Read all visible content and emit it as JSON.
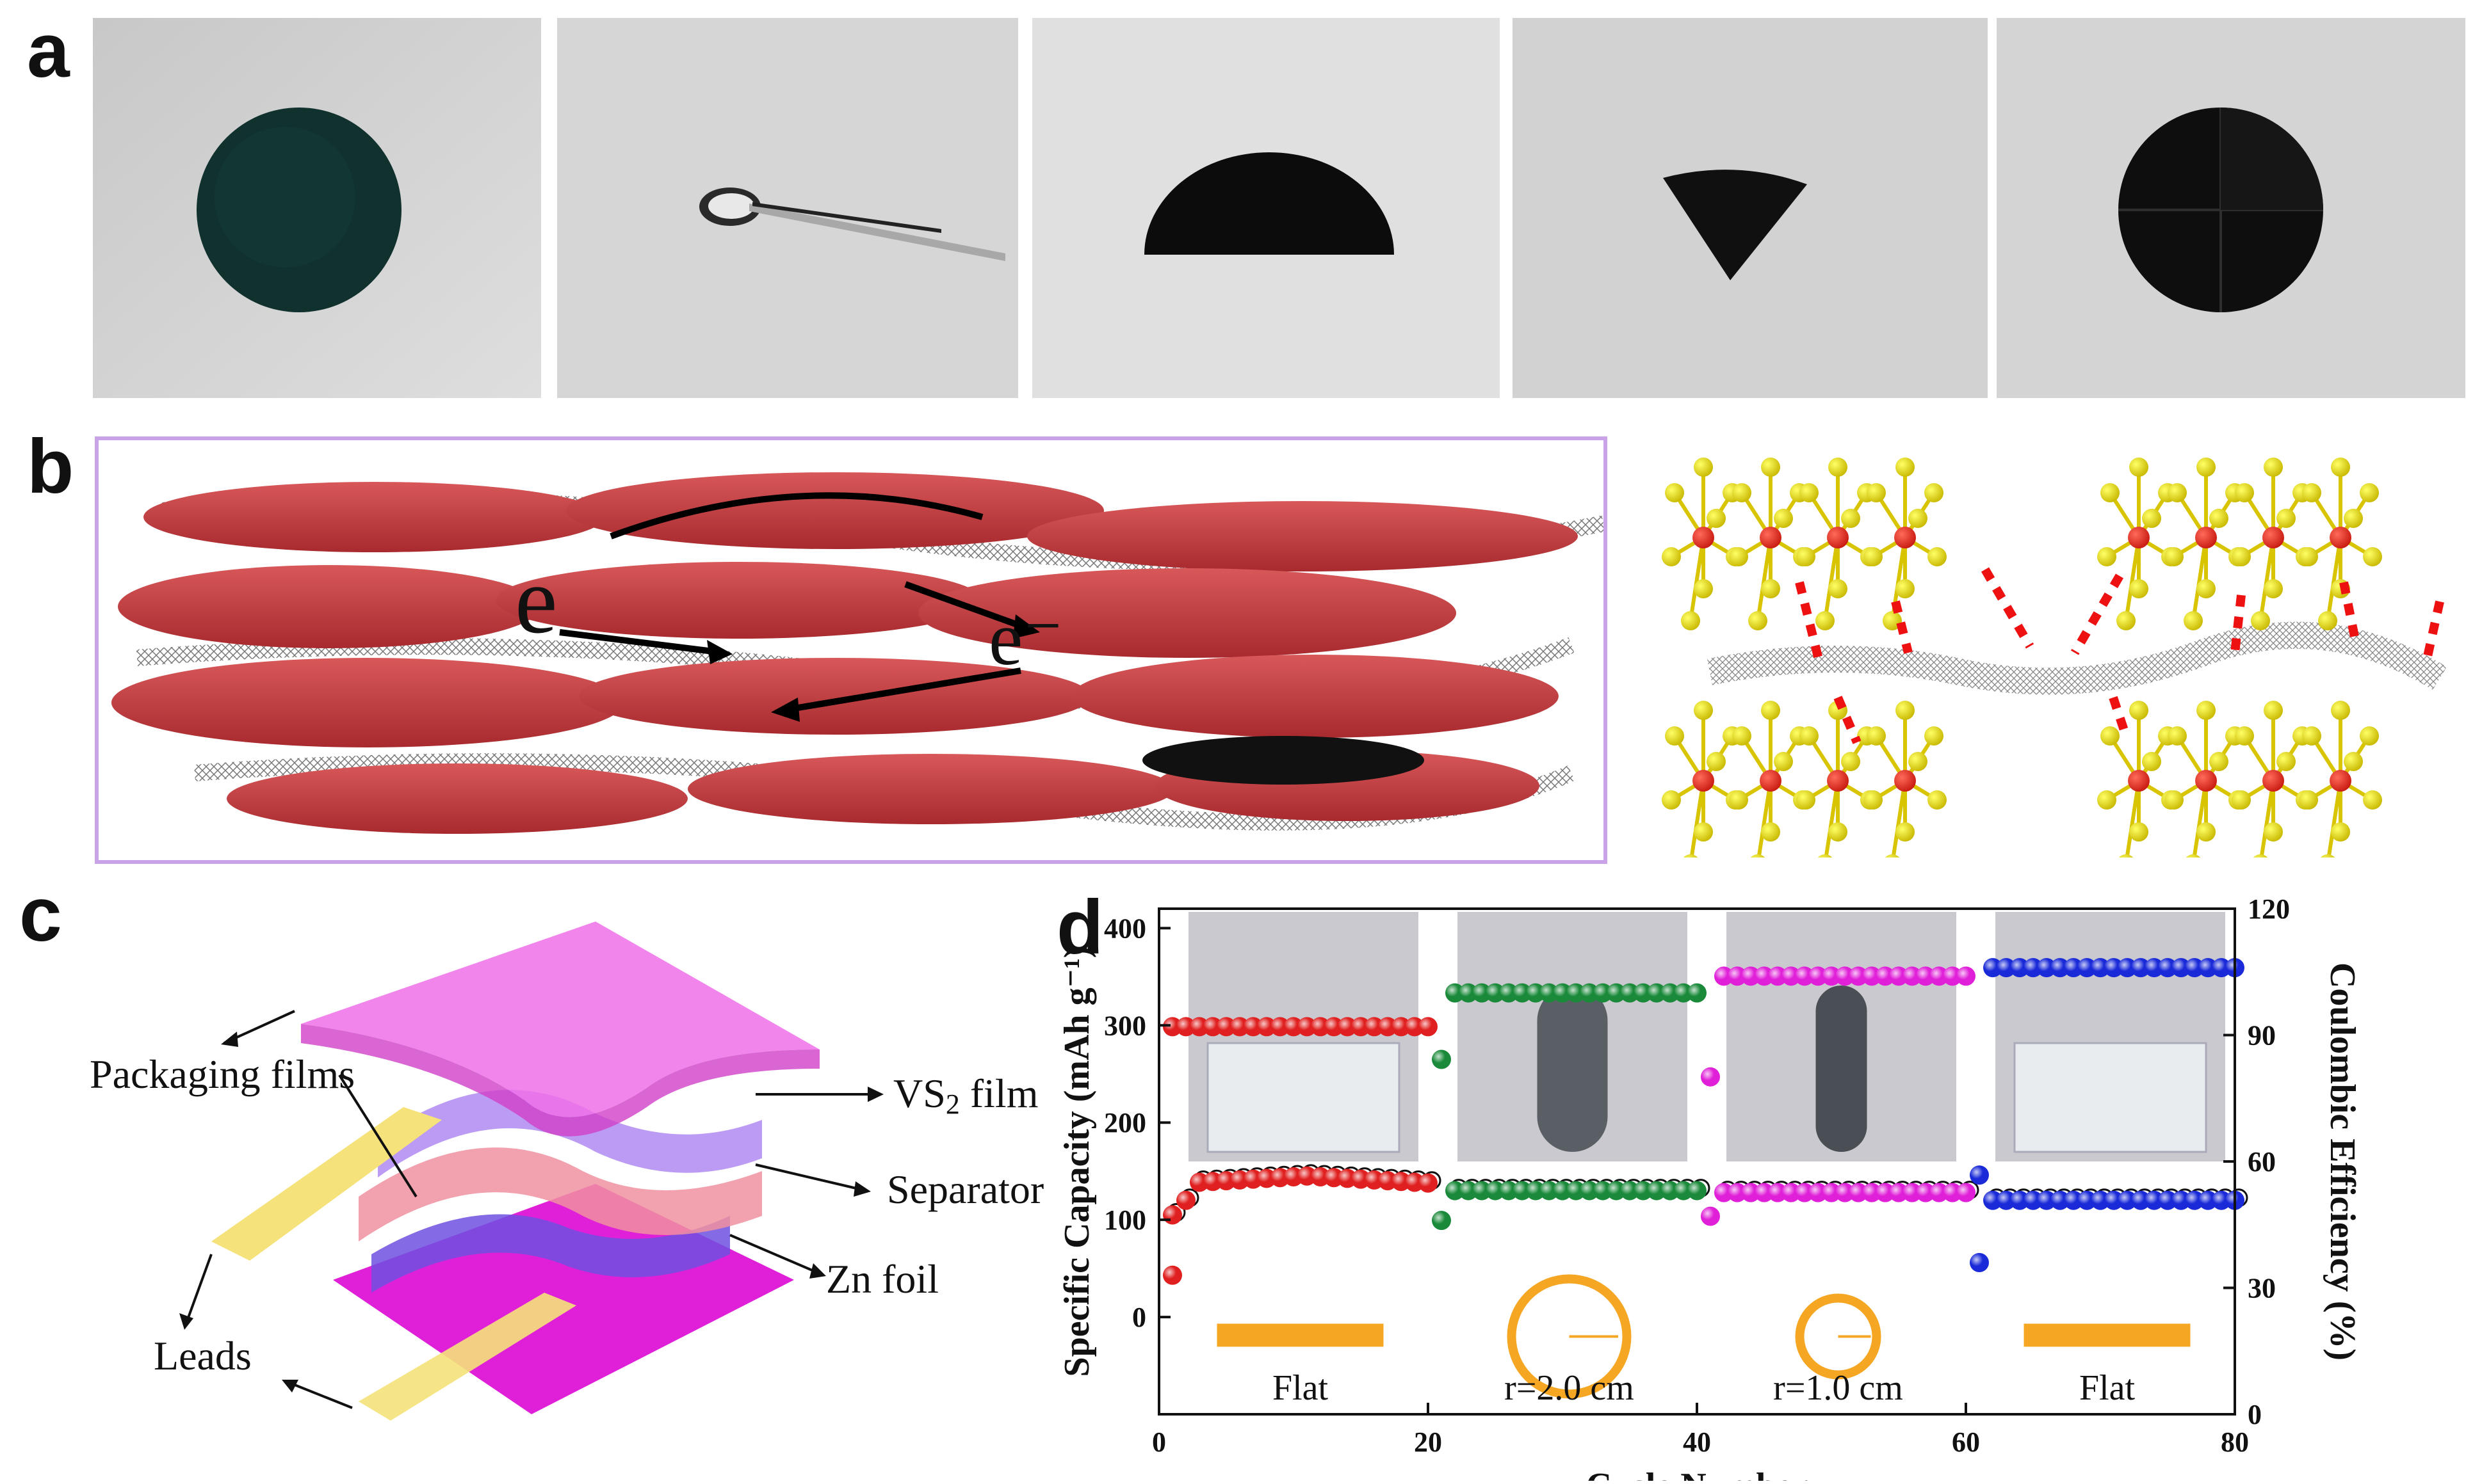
{
  "panels": {
    "a": "a",
    "b": "b",
    "c": "c",
    "d": "d"
  },
  "panel_b": {
    "electron_label_1": "e",
    "electron_label_2": "e⁻"
  },
  "panel_c": {
    "labels": {
      "packaging": "Packaging films",
      "vs2": "VS",
      "vs2_sub": "2",
      "vs2_suffix": " film",
      "separator": "Separator",
      "zn": "Zn foil",
      "leads": "Leads"
    }
  },
  "colors": {
    "capacity_segments": [
      "#e02020",
      "#1a8a3a",
      "#e020d8",
      "#1a2ad8"
    ],
    "bend_indicator": "#f5a623",
    "panel_b_border": "#c9a3e8",
    "sheet_red": "#c4393e"
  },
  "chart_data": {
    "type": "scatter",
    "xlabel": "Cycle Number",
    "ylabel": "Specific Capacity (mAh g⁻¹)",
    "y2label": "Coulombic Efficiency (%)",
    "xlim": [
      0,
      80
    ],
    "ylim": [
      -100,
      420
    ],
    "y2lim": [
      0,
      120
    ],
    "xticks": [
      0,
      20,
      40,
      60,
      80
    ],
    "yticks": [
      0,
      100,
      200,
      300,
      400
    ],
    "y2ticks": [
      0,
      30,
      60,
      90,
      120
    ],
    "segments": [
      {
        "label": "Flat",
        "x_range": [
          1,
          20
        ],
        "color": "#e02020",
        "capacity": 145,
        "efficiency_plateau": 92
      },
      {
        "label": "r=2.0 cm",
        "x_range": [
          21,
          40
        ],
        "color": "#1a8a3a",
        "capacity": 130,
        "efficiency_plateau": 100
      },
      {
        "label": "r=1.0 cm",
        "x_range": [
          41,
          60
        ],
        "color": "#e020d8",
        "capacity": 128,
        "efficiency_plateau": 104
      },
      {
        "label": "Flat",
        "x_range": [
          61,
          80
        ],
        "color": "#1a2ad8",
        "capacity": 120,
        "efficiency_plateau": 106
      }
    ],
    "outlier_points": [
      {
        "x": 1,
        "y_eff": 33,
        "color": "#e02020"
      },
      {
        "x": 21,
        "y_capacity": 265,
        "color": "#1a8a3a"
      },
      {
        "x": 21,
        "y_eff": 46,
        "color": "#1a8a3a"
      },
      {
        "x": 41,
        "y_capacity": 247,
        "color": "#e020d8"
      },
      {
        "x": 41,
        "y_eff": 47,
        "color": "#e020d8"
      },
      {
        "x": 61,
        "y_capacity": 146,
        "color": "#1a2ad8"
      },
      {
        "x": 61,
        "y_eff": 36,
        "color": "#1a2ad8"
      }
    ]
  }
}
